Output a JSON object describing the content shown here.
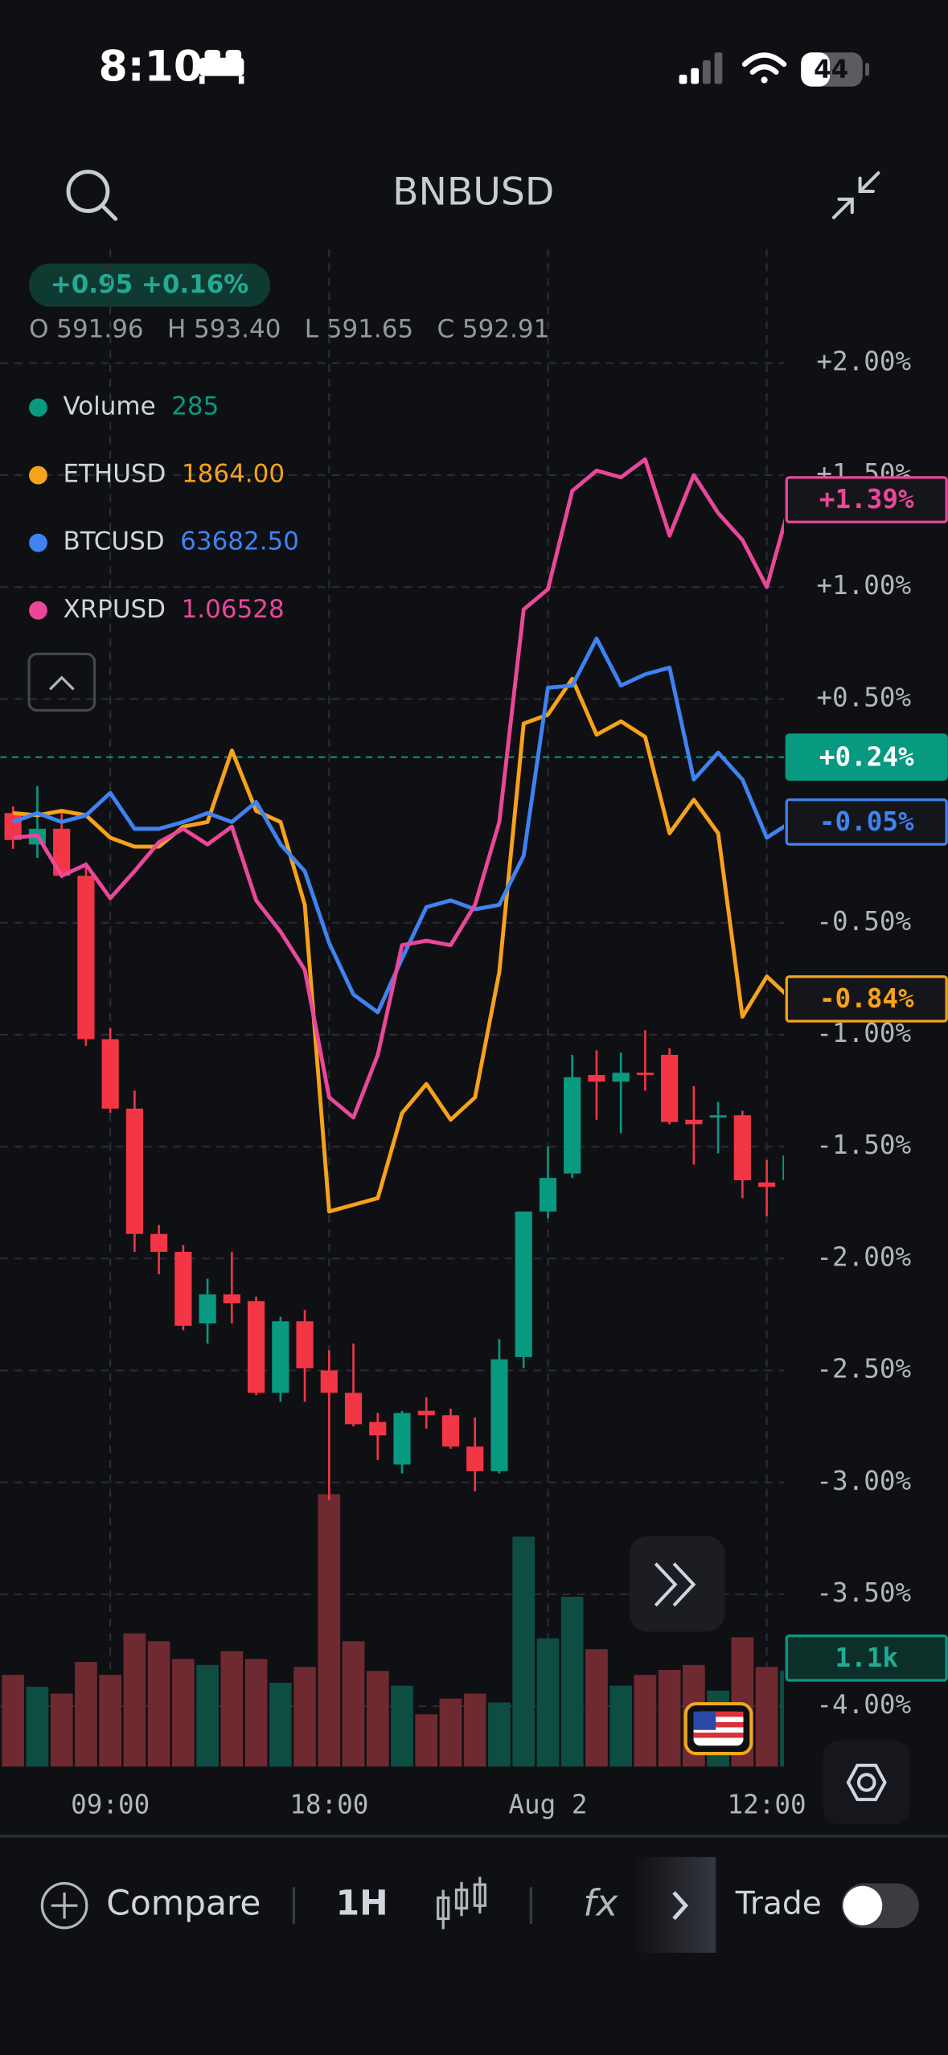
{
  "status_bar": {
    "time": "8:10",
    "battery": "44"
  },
  "header": {
    "symbol": "BNBUSD"
  },
  "summary": {
    "change": "+0.95 +0.16%",
    "ohlc": [
      {
        "key": "O",
        "value": "591.96"
      },
      {
        "key": "H",
        "value": "593.40"
      },
      {
        "key": "L",
        "value": "591.65"
      },
      {
        "key": "C",
        "value": "592.91"
      }
    ]
  },
  "chart_data": {
    "type": "candlestick",
    "categories": [
      null,
      null,
      null,
      null,
      "09:00",
      null,
      null,
      null,
      null,
      null,
      null,
      null,
      null,
      "18:00",
      null,
      null,
      null,
      null,
      null,
      null,
      null,
      null,
      "Aug 2",
      null,
      null,
      null,
      null,
      null,
      null,
      null,
      null,
      "12:00",
      null
    ],
    "ylim": [
      -4.27,
      2.51
    ],
    "yticks": [
      {
        "value": 2,
        "label": "+2.00%"
      },
      {
        "value": 1.5,
        "label": "+1.50%"
      },
      {
        "value": 1,
        "label": "+1.00%"
      },
      {
        "value": 0.5,
        "label": "+0.50%"
      },
      {
        "value": -0.5,
        "label": "-0.50%"
      },
      {
        "value": -1,
        "label": "-1.00%"
      },
      {
        "value": -1.5,
        "label": "-1.50%"
      },
      {
        "value": -2,
        "label": "-2.00%"
      },
      {
        "value": -2.5,
        "label": "-2.50%"
      },
      {
        "value": -3,
        "label": "-3.00%"
      },
      {
        "value": -3.5,
        "label": "-3.50%"
      },
      {
        "value": -4,
        "label": "-4.00%"
      }
    ],
    "grid": true,
    "up_color": "#089981",
    "down_color": "#f23645",
    "candles": {
      "open": [
        -0.01,
        -0.15,
        -0.08,
        -0.29,
        -1.02,
        -1.33,
        -1.89,
        -1.97,
        -2.29,
        -2.16,
        -2.19,
        -2.6,
        -2.28,
        -2.5,
        -2.6,
        -2.73,
        -2.92,
        -2.68,
        -2.7,
        -2.84,
        -2.95,
        -2.44,
        -1.79,
        -1.62,
        -1.18,
        -1.21,
        -1.17,
        -1.09,
        -1.38,
        -1.37,
        -1.36,
        -1.66,
        -1.65
      ],
      "high": [
        0.02,
        0.11,
        0.0,
        -0.23,
        -0.97,
        -1.25,
        -1.85,
        -1.94,
        -2.09,
        -1.97,
        -2.17,
        -2.26,
        -2.23,
        -2.41,
        -2.38,
        -2.69,
        -2.68,
        -2.62,
        -2.67,
        -2.71,
        -2.36,
        -1.79,
        -1.5,
        -1.09,
        -1.07,
        -1.08,
        -0.98,
        -1.06,
        -1.23,
        -1.3,
        -1.34,
        -1.56,
        -1.52
      ],
      "low": [
        -0.17,
        -0.21,
        -0.3,
        -1.05,
        -1.35,
        -1.97,
        -2.07,
        -2.32,
        -2.38,
        -2.29,
        -2.61,
        -2.64,
        -2.64,
        -3.08,
        -2.75,
        -2.9,
        -2.96,
        -2.76,
        -2.85,
        -3.04,
        -2.96,
        -2.49,
        -1.82,
        -1.64,
        -1.38,
        -1.44,
        -1.25,
        -1.4,
        -1.58,
        -1.53,
        -1.73,
        -1.81,
        -1.73
      ],
      "close": [
        -0.13,
        -0.08,
        -0.29,
        -1.02,
        -1.33,
        -1.89,
        -1.97,
        -2.3,
        -2.16,
        -2.2,
        -2.6,
        -2.28,
        -2.49,
        -2.6,
        -2.74,
        -2.79,
        -2.69,
        -2.7,
        -2.84,
        -2.95,
        -2.45,
        -1.79,
        -1.64,
        -1.19,
        -1.21,
        -1.17,
        -1.18,
        -1.39,
        -1.4,
        -1.36,
        -1.65,
        -1.68,
        -1.54
      ]
    },
    "current": {
      "value": 0.24,
      "label": "+0.24%"
    },
    "volume": {
      "name": "Volume",
      "legend_value": "285",
      "color": "#089981",
      "up_color": "#0e4d41",
      "down_color": "#6e2a30",
      "ylim": [
        0,
        3000
      ],
      "values": [
        930,
        810,
        740,
        1060,
        930,
        1350,
        1270,
        1090,
        1030,
        1170,
        1090,
        850,
        1010,
        2760,
        1270,
        970,
        820,
        530,
        690,
        740,
        650,
        2330,
        1300,
        1720,
        1190,
        820,
        930,
        980,
        1030,
        770,
        1310,
        1010,
        970
      ],
      "last": {
        "value": 1100,
        "label": "1.1k"
      }
    },
    "series": [
      {
        "name": "ETHUSD",
        "legend_value": "1864.00",
        "color": "#f7a21b",
        "last_label": "-0.84%",
        "values": [
          -0.01,
          -0.02,
          0.0,
          -0.02,
          -0.12,
          -0.16,
          -0.16,
          -0.07,
          -0.05,
          0.27,
          0.0,
          -0.05,
          -0.42,
          -1.79,
          -1.76,
          -1.73,
          -1.35,
          -1.22,
          -1.38,
          -1.28,
          -0.72,
          0.39,
          0.43,
          0.59,
          0.34,
          0.4,
          0.33,
          -0.1,
          0.05,
          -0.1,
          -0.92,
          -0.74,
          -0.84
        ]
      },
      {
        "name": "BTCUSD",
        "legend_value": "63682.50",
        "color": "#3f83f2",
        "last_label": "-0.05%",
        "values": [
          -0.05,
          -0.01,
          -0.05,
          -0.02,
          0.08,
          -0.08,
          -0.08,
          -0.05,
          -0.01,
          -0.05,
          0.04,
          -0.15,
          -0.27,
          -0.59,
          -0.82,
          -0.9,
          -0.66,
          -0.43,
          -0.4,
          -0.44,
          -0.42,
          -0.2,
          0.55,
          0.56,
          0.77,
          0.56,
          0.61,
          0.64,
          0.14,
          0.26,
          0.14,
          -0.12,
          -0.05
        ]
      },
      {
        "name": "XRPUSD",
        "legend_value": "1.06528",
        "color": "#e9489a",
        "last_label": "+1.39%",
        "values": [
          -0.12,
          -0.11,
          -0.29,
          -0.24,
          -0.39,
          -0.27,
          -0.14,
          -0.08,
          -0.15,
          -0.07,
          -0.4,
          -0.54,
          -0.71,
          -1.28,
          -1.37,
          -1.09,
          -0.6,
          -0.58,
          -0.6,
          -0.42,
          -0.05,
          0.9,
          0.99,
          1.43,
          1.52,
          1.49,
          1.57,
          1.23,
          1.5,
          1.33,
          1.21,
          1.0,
          1.39
        ]
      }
    ]
  },
  "toolbar": {
    "compare": "Compare",
    "interval": "1H",
    "indicators": "fx",
    "trade": "Trade"
  }
}
